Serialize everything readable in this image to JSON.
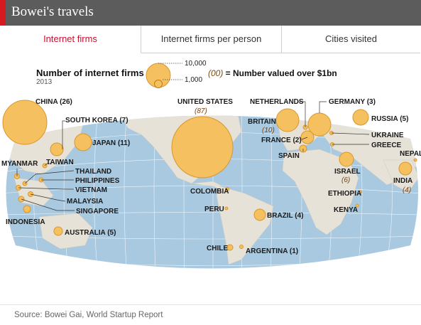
{
  "header": {
    "title": "Bowei's travels"
  },
  "tabs": [
    {
      "label": "Internet firms",
      "active": true
    },
    {
      "label": "Internet firms per person",
      "active": false
    },
    {
      "label": "Cities visited",
      "active": false
    }
  ],
  "legend": {
    "title": "Number of internet firms",
    "year": "2013",
    "size_large": "10,000",
    "size_small": "1,000",
    "note_prefix": "(00)",
    "note_text": " = Number valued over $1bn"
  },
  "source": "Source: Bowei Gai, World Startup Report",
  "colors": {
    "bubble_fill": "#f5c160",
    "bubble_stroke": "#d9962a",
    "land": "#e6e2d8",
    "ocean": "#a9c9e0",
    "number": "#7a3d10"
  },
  "map_data": {
    "countries": [
      {
        "name": "CHINA",
        "count": "(26)"
      },
      {
        "name": "SOUTH KOREA",
        "count": "(7)"
      },
      {
        "name": "JAPAN",
        "count": "(11)"
      },
      {
        "name": "TAIWAN",
        "count": ""
      },
      {
        "name": "MYANMAR",
        "count": ""
      },
      {
        "name": "THAILAND",
        "count": ""
      },
      {
        "name": "PHILIPPINES",
        "count": ""
      },
      {
        "name": "VIETNAM",
        "count": ""
      },
      {
        "name": "MALAYSIA",
        "count": ""
      },
      {
        "name": "SINGAPORE",
        "count": ""
      },
      {
        "name": "INDONESIA",
        "count": ""
      },
      {
        "name": "AUSTRALIA",
        "count": "(5)"
      },
      {
        "name": "UNITED STATES",
        "count": "(87)"
      },
      {
        "name": "COLOMBIA",
        "count": ""
      },
      {
        "name": "PERU",
        "count": ""
      },
      {
        "name": "BRAZIL",
        "count": "(4)"
      },
      {
        "name": "CHILE",
        "count": ""
      },
      {
        "name": "ARGENTINA",
        "count": "(1)"
      },
      {
        "name": "NETHERLANDS",
        "count": ""
      },
      {
        "name": "BRITAIN",
        "count": "(10)"
      },
      {
        "name": "FRANCE",
        "count": "(2)"
      },
      {
        "name": "SPAIN",
        "count": ""
      },
      {
        "name": "GERMANY",
        "count": "(3)"
      },
      {
        "name": "RUSSIA",
        "count": "(5)"
      },
      {
        "name": "UKRAINE",
        "count": ""
      },
      {
        "name": "GREECE",
        "count": ""
      },
      {
        "name": "ISRAEL",
        "count": "(6)"
      },
      {
        "name": "ETHIOPIA",
        "count": ""
      },
      {
        "name": "KENYA",
        "count": ""
      },
      {
        "name": "NEPAL",
        "count": ""
      },
      {
        "name": "INDIA",
        "count": "(4)"
      }
    ]
  }
}
